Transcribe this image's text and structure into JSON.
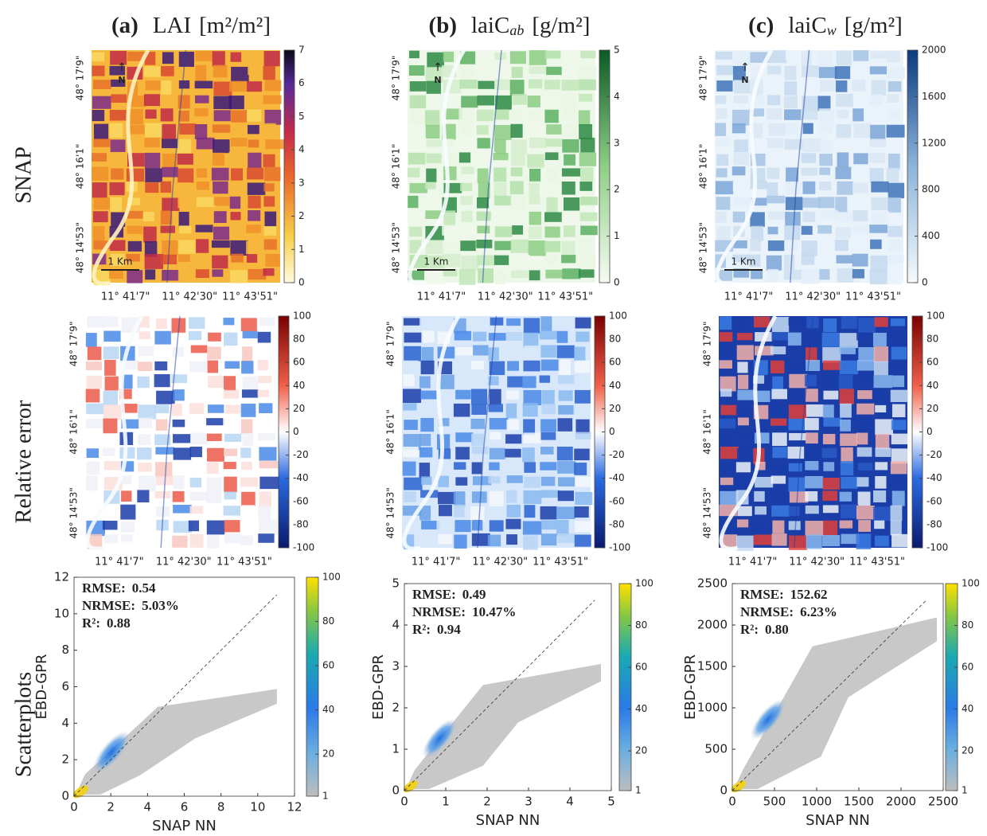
{
  "row_labels": [
    "SNAP",
    "Relative error",
    "Scatterplots"
  ],
  "columns": [
    {
      "letter": "(a)",
      "title": "LAI",
      "unit": "[m²/m²]"
    },
    {
      "letter": "(b)",
      "title": "laiC",
      "sub": "ab",
      "unit": "[g/m²]"
    },
    {
      "letter": "(c)",
      "title": "laiC",
      "sub": "w",
      "unit": "[g/m²]"
    }
  ],
  "map_labels": {
    "lat": [
      "48° 17'9\"",
      "48° 16'1\"",
      "48° 14'53\""
    ],
    "lon": [
      "11° 41'7\"",
      "11° 42'30\"",
      "11° 43'51\""
    ],
    "scale": "1 Km",
    "north": "N"
  },
  "snap_colorbars": [
    {
      "lim": [
        0,
        7
      ],
      "ticks": [
        0,
        1,
        2,
        3,
        4,
        5,
        6,
        7
      ]
    },
    {
      "lim": [
        0,
        5
      ],
      "ticks": [
        0,
        1,
        2,
        3,
        4,
        5
      ]
    },
    {
      "lim": [
        0,
        2000
      ],
      "ticks": [
        0,
        400,
        800,
        1200,
        1600,
        2000
      ]
    }
  ],
  "error_colorbar": {
    "lim": [
      -100,
      100
    ],
    "ticks": [
      -100,
      -80,
      -60,
      -40,
      -20,
      0,
      20,
      40,
      60,
      80,
      100
    ]
  },
  "scatterplots": [
    {
      "xlim": [
        0,
        12
      ],
      "xticks": [
        0,
        2,
        4,
        6,
        8,
        10,
        12
      ],
      "ylim": [
        0,
        12
      ],
      "yticks": [
        0,
        2,
        4,
        6,
        8,
        10,
        12
      ],
      "stats": [
        {
          "label": "RMSE:",
          "value": "0.54"
        },
        {
          "label": "NRMSE:",
          "value": "5.03%"
        },
        {
          "label": "R²:",
          "value": "0.88"
        }
      ]
    },
    {
      "xlim": [
        0,
        5
      ],
      "xticks": [
        0,
        1,
        2,
        3,
        4,
        5
      ],
      "ylim": [
        0,
        5
      ],
      "yticks": [
        0,
        1,
        2,
        3,
        4,
        5
      ],
      "stats": [
        {
          "label": "RMSE:",
          "value": "0.49"
        },
        {
          "label": "NRMSE:",
          "value": "10.47%"
        },
        {
          "label": "R²:",
          "value": "0.94"
        }
      ]
    },
    {
      "xlim": [
        0,
        2500
      ],
      "xticks": [
        0,
        500,
        1000,
        1500,
        2000,
        2500
      ],
      "ylim": [
        0,
        2500
      ],
      "yticks": [
        0,
        500,
        1000,
        1500,
        2000,
        2500
      ],
      "stats": [
        {
          "label": "RMSE:",
          "value": "152.62"
        },
        {
          "label": "NRMSE:",
          "value": "6.23%"
        },
        {
          "label": "R²:",
          "value": "0.80"
        }
      ]
    }
  ],
  "scatter_colorbar": {
    "lim": [
      1,
      100
    ],
    "ticks": [
      1,
      20,
      40,
      60,
      80,
      100
    ]
  },
  "x_label": "SNAP NN",
  "y_label": "EBD-GPR"
}
